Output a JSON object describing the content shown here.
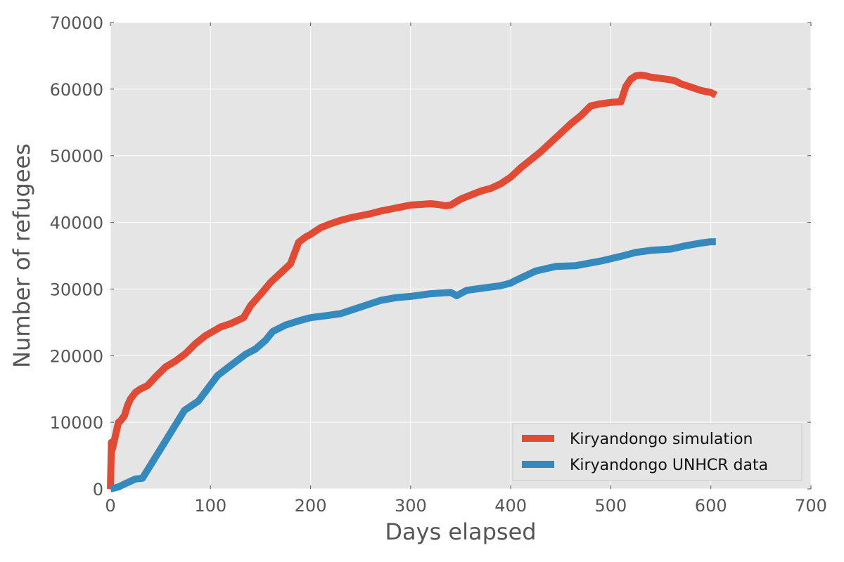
{
  "chart_data": {
    "type": "line",
    "title": "",
    "xlabel": "Days elapsed",
    "ylabel": "Number of refugees",
    "xlim": [
      0,
      700
    ],
    "ylim": [
      0,
      70000
    ],
    "xticks": [
      0,
      100,
      200,
      300,
      400,
      500,
      600,
      700
    ],
    "yticks": [
      0,
      10000,
      20000,
      30000,
      40000,
      50000,
      60000,
      70000
    ],
    "grid": true,
    "legend_position": "lower-right",
    "background": "#e5e5e5",
    "series": [
      {
        "name": "Kiryandongo simulation",
        "color": "#e24a33",
        "x": [
          0,
          1,
          2,
          5,
          8,
          10,
          14,
          17,
          20,
          25,
          30,
          37,
          45,
          55,
          65,
          75,
          85,
          95,
          110,
          120,
          133,
          140,
          150,
          160,
          170,
          180,
          188,
          195,
          200,
          210,
          220,
          230,
          240,
          250,
          260,
          270,
          280,
          290,
          300,
          310,
          320,
          327,
          335,
          340,
          350,
          360,
          370,
          380,
          390,
          400,
          410,
          420,
          430,
          440,
          450,
          460,
          470,
          480,
          490,
          500,
          510,
          515,
          520,
          525,
          530,
          535,
          540,
          545,
          550,
          560,
          565,
          570,
          580,
          590,
          600,
          605
        ],
        "y": [
          0,
          7000,
          6000,
          8000,
          10000,
          10200,
          11000,
          12500,
          13500,
          14500,
          15000,
          15500,
          16800,
          18300,
          19200,
          20300,
          21800,
          23000,
          24300,
          24800,
          25700,
          27500,
          29200,
          31000,
          32400,
          33800,
          37000,
          37800,
          38200,
          39200,
          39800,
          40300,
          40700,
          41000,
          41300,
          41700,
          42000,
          42300,
          42600,
          42700,
          42800,
          42700,
          42500,
          42600,
          43500,
          44100,
          44700,
          45100,
          45800,
          46800,
          48200,
          49400,
          50600,
          52000,
          53400,
          54800,
          56000,
          57500,
          57800,
          58000,
          58100,
          60400,
          61500,
          62000,
          62100,
          62000,
          61800,
          61700,
          61600,
          61400,
          61200,
          60800,
          60300,
          59800,
          59500,
          59100
        ]
      },
      {
        "name": "Kiryandongo UNHCR data",
        "color": "#348abd",
        "x": [
          0,
          8,
          15,
          25,
          32,
          74,
          88,
          107,
          120,
          135,
          145,
          155,
          162,
          175,
          190,
          200,
          215,
          230,
          250,
          270,
          285,
          300,
          320,
          340,
          346,
          356,
          370,
          390,
          400,
          405,
          425,
          445,
          465,
          490,
          510,
          525,
          540,
          560,
          575,
          590,
          600,
          605
        ],
        "y": [
          0,
          300,
          800,
          1500,
          1600,
          11800,
          13200,
          17000,
          18500,
          20200,
          21000,
          22300,
          23600,
          24600,
          25300,
          25700,
          26000,
          26300,
          27300,
          28300,
          28700,
          28900,
          29300,
          29500,
          29000,
          29800,
          30100,
          30500,
          30900,
          31300,
          32700,
          33400,
          33500,
          34200,
          34900,
          35500,
          35800,
          36000,
          36500,
          36900,
          37100,
          37100
        ]
      }
    ]
  }
}
